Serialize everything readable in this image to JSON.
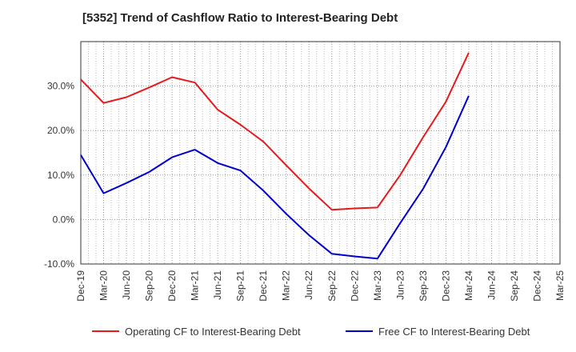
{
  "chart_data": {
    "type": "line",
    "title": "[5352]  Trend of Cashflow Ratio to Interest-Bearing Debt",
    "xlabel": "",
    "ylabel": "",
    "categories": [
      "Dec-19",
      "Mar-20",
      "Jun-20",
      "Sep-20",
      "Dec-20",
      "Mar-21",
      "Jun-21",
      "Sep-21",
      "Dec-21",
      "Mar-22",
      "Jun-22",
      "Sep-22",
      "Dec-22",
      "Mar-23",
      "Jun-23",
      "Sep-23",
      "Dec-23",
      "Mar-24",
      "Jun-24",
      "Sep-24",
      "Dec-24",
      "Mar-25"
    ],
    "ylim": [
      -10,
      40
    ],
    "yticks": [
      -10,
      0,
      10,
      20,
      30
    ],
    "ytick_labels": [
      "-10.0%",
      "0.0%",
      "10.0%",
      "20.0%",
      "30.0%"
    ],
    "grid": true,
    "legend_position": "bottom",
    "series": [
      {
        "name": "Operating CF to Interest-Bearing Debt",
        "color": "#e41a1c",
        "values": [
          31.5,
          26.2,
          27.5,
          29.7,
          32.0,
          30.8,
          24.7,
          21.3,
          17.5,
          12.2,
          7.0,
          2.2,
          2.5,
          2.7,
          10.0,
          18.5,
          26.5,
          37.5,
          null,
          null,
          null,
          null
        ]
      },
      {
        "name": "Free CF to Interest-Bearing Debt",
        "color": "#0000cc",
        "values": [
          14.5,
          5.9,
          8.2,
          10.7,
          14.0,
          15.7,
          12.7,
          11.0,
          6.5,
          1.3,
          -3.5,
          -7.7,
          -8.3,
          -8.8,
          -0.8,
          6.9,
          16.3,
          27.8,
          null,
          null,
          null,
          null
        ]
      }
    ]
  }
}
